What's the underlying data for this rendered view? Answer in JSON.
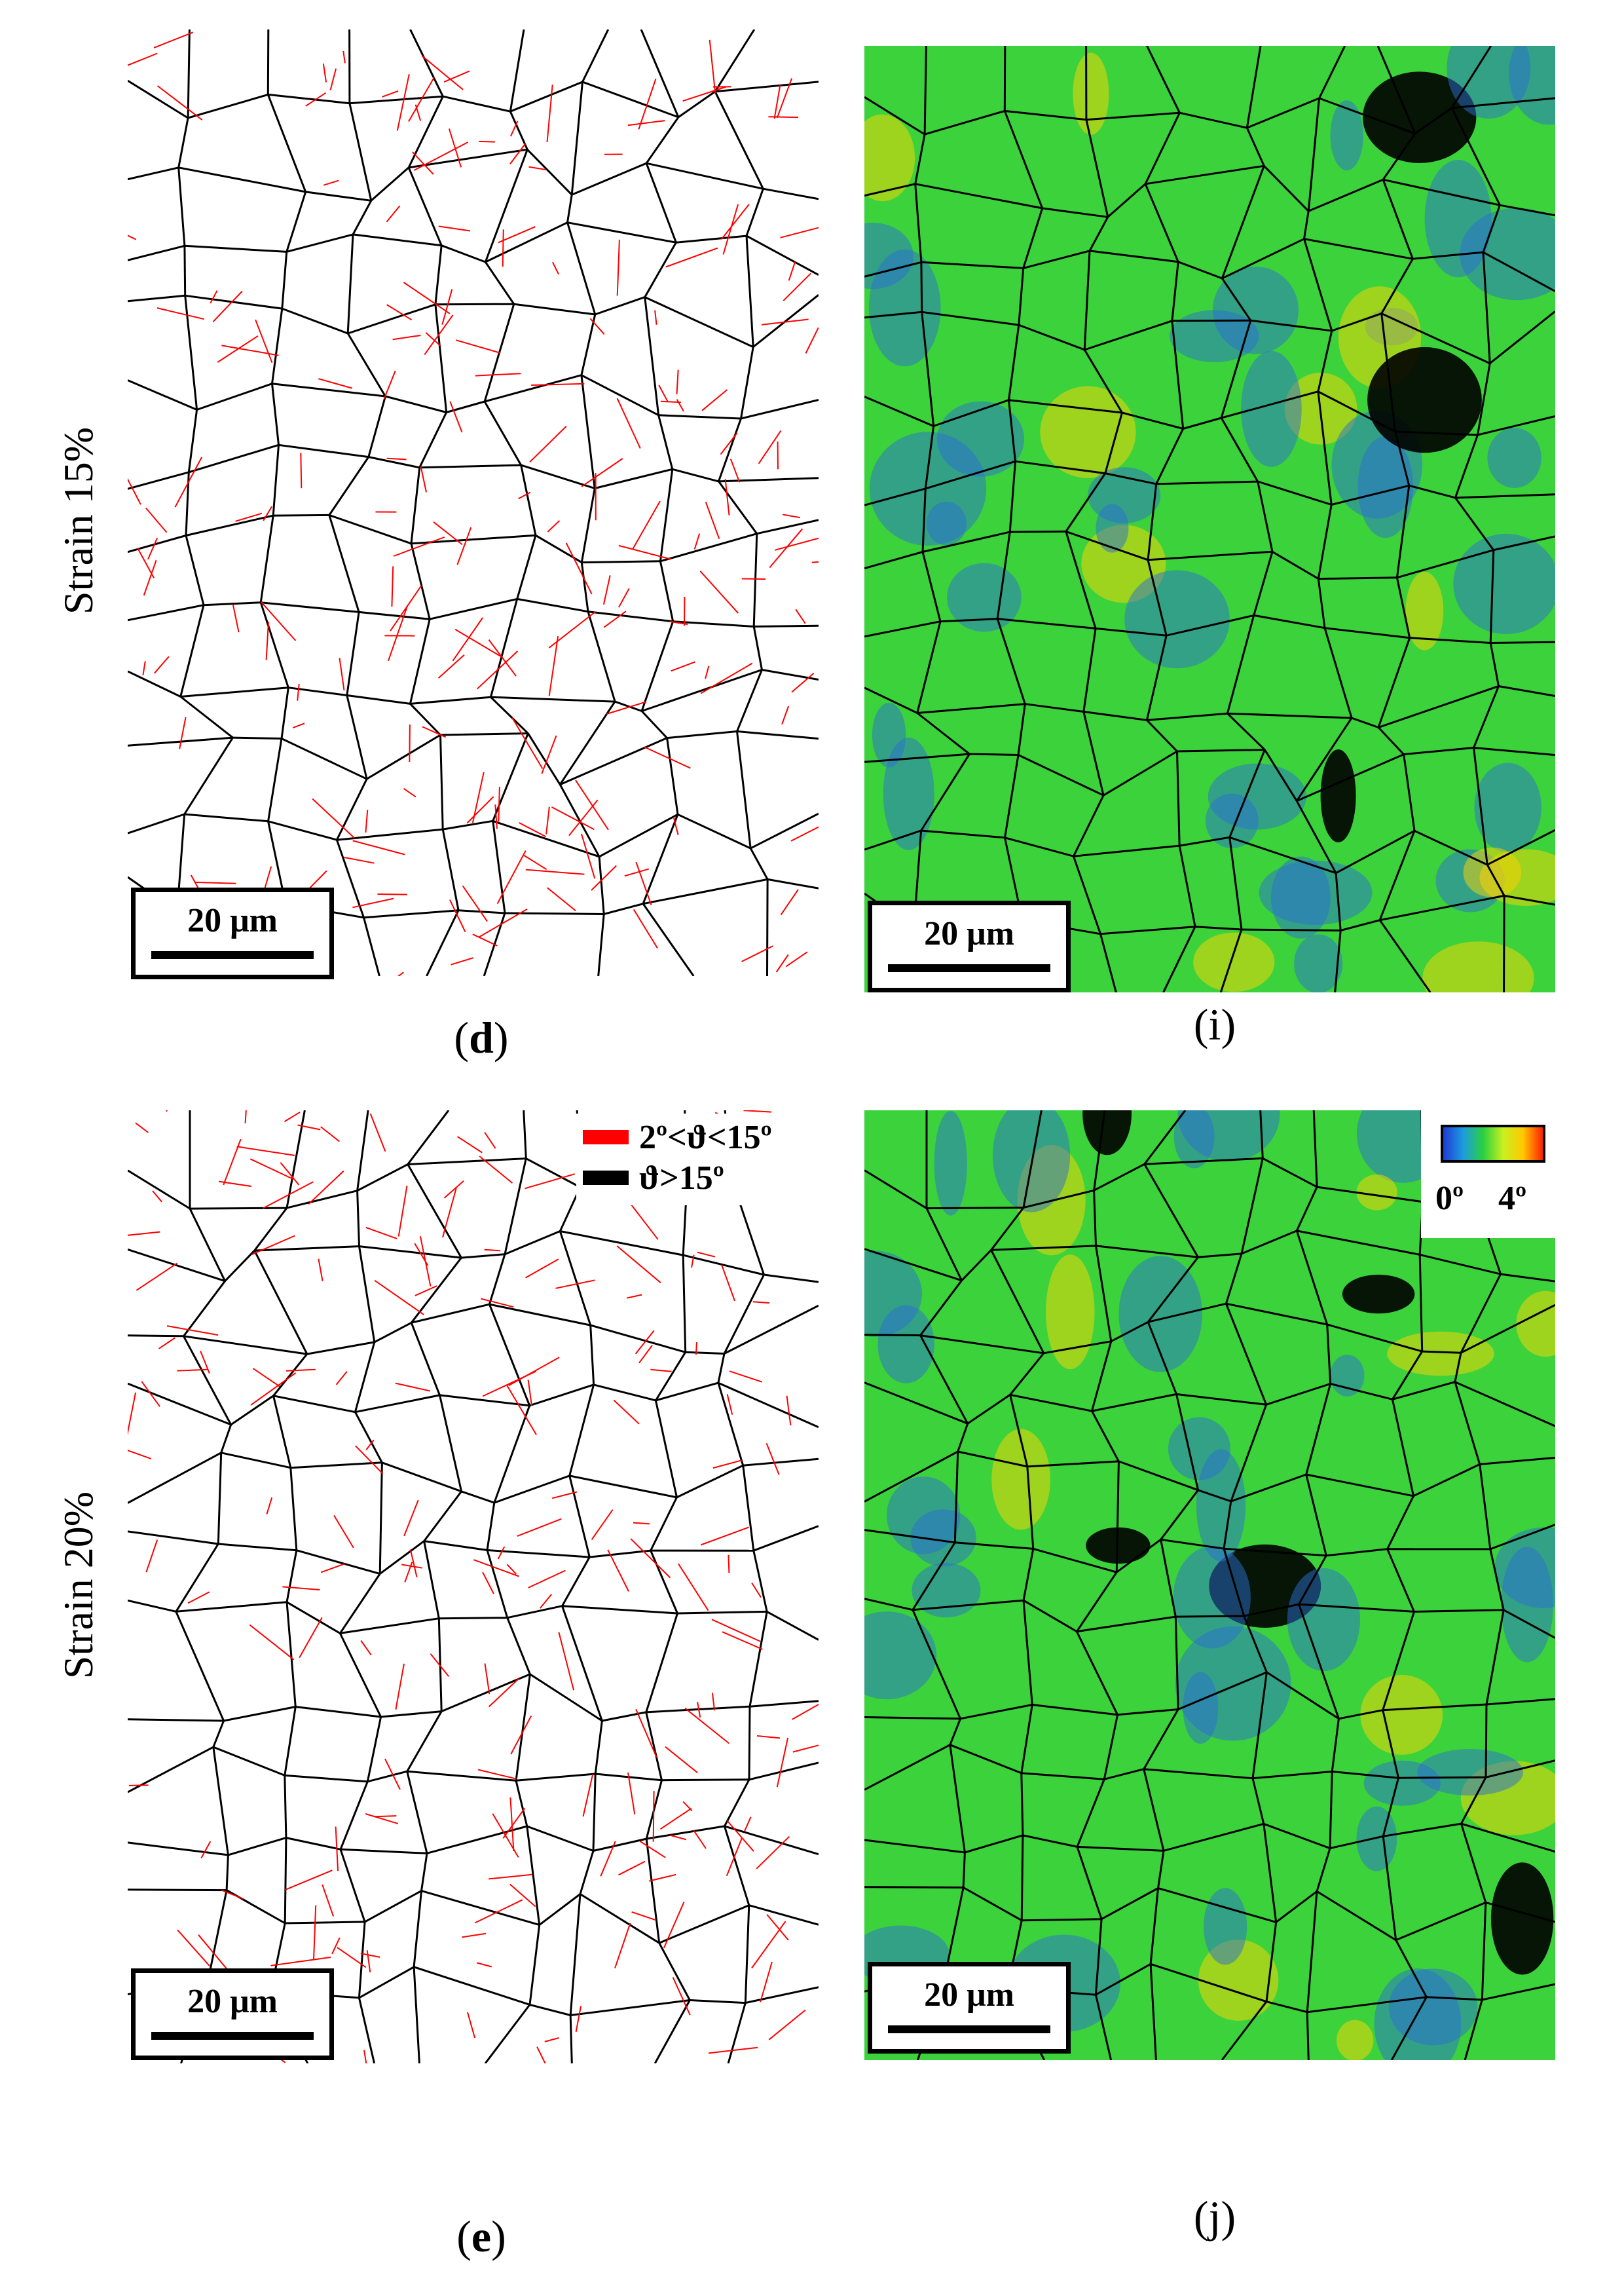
{
  "rows": [
    {
      "label": "Strain 15%"
    },
    {
      "label": "Strain 20%"
    }
  ],
  "panels": {
    "d": {
      "label": "d",
      "scale_bar": "20 μm"
    },
    "i": {
      "label": "i",
      "scale_bar": "20 μm"
    },
    "e": {
      "label": "e",
      "scale_bar": "20 μm"
    },
    "j": {
      "label": "j",
      "scale_bar": "20 μm"
    }
  },
  "boundary_legend": {
    "items": [
      {
        "label": "2º<ϑ<15º",
        "color": "#ff0000"
      },
      {
        "label": "ϑ>15º",
        "color": "#000000"
      }
    ]
  },
  "kam_legend": {
    "min": "0º",
    "max": "4º",
    "colors": [
      "#1e3cd2",
      "#1e9be0",
      "#28d040",
      "#c8f020",
      "#ffc800",
      "#ff2000"
    ]
  },
  "colors": {
    "low_angle_boundary": "#ff0000",
    "high_angle_boundary": "#000000",
    "kam_background": "#3cd23c",
    "kam_low": "#2a6fd0",
    "kam_high": "#ffd400"
  }
}
